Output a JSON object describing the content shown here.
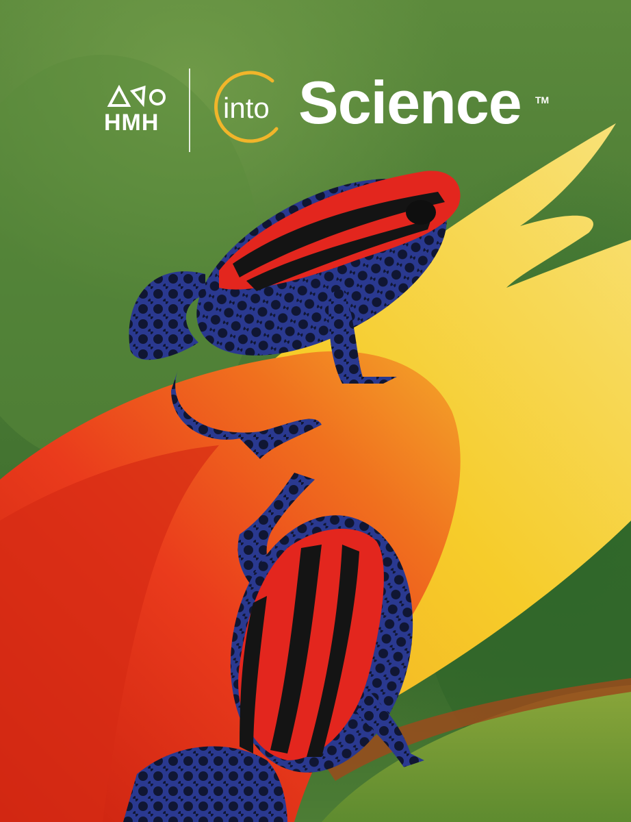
{
  "publisher": {
    "name": "HMH"
  },
  "product": {
    "prefix": "into",
    "name": "Science",
    "trademark": "TM"
  },
  "colors": {
    "background_green": "#4a7a34",
    "flower_red": "#e23a1c",
    "flower_yellow": "#f4c623",
    "frog_red": "#e3261e",
    "frog_blue": "#3b4fa8",
    "ring_gold": "#f1b52a"
  },
  "icons": [
    "hmh-shapes-icon",
    "into-ring-icon"
  ]
}
